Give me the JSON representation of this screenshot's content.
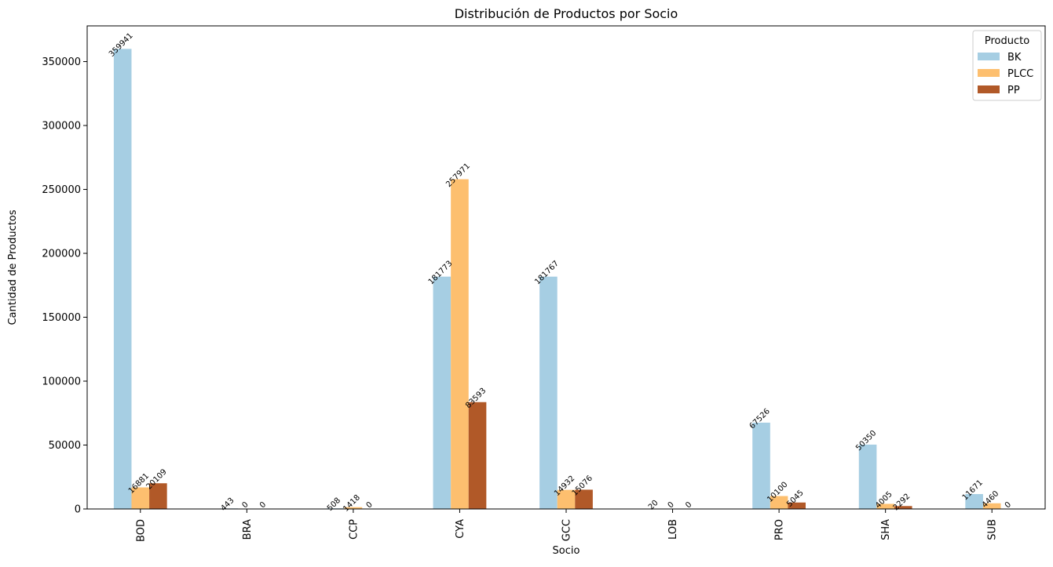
{
  "chart_data": {
    "type": "bar",
    "title": "Distribución de Productos por Socio",
    "xlabel": "Socio",
    "ylabel": "Cantidad de Productos",
    "categories": [
      "BOD",
      "BRA",
      "CCP",
      "CYA",
      "GCC",
      "LOB",
      "PRO",
      "SHA",
      "SUB"
    ],
    "series": [
      {
        "name": "BK",
        "color": "#a6cee3",
        "values": [
          359941,
          443,
          508,
          181773,
          181767,
          20,
          67526,
          50350,
          11671
        ]
      },
      {
        "name": "PLCC",
        "color": "#fdbf6f",
        "values": [
          16881,
          0,
          1418,
          257971,
          14932,
          0,
          10100,
          4005,
          4460
        ]
      },
      {
        "name": "PP",
        "color": "#b15928",
        "values": [
          20109,
          0,
          0,
          83593,
          15076,
          0,
          5045,
          2292,
          0
        ]
      }
    ],
    "ylim": [
      0,
      377938
    ],
    "yticks": [
      0,
      50000,
      100000,
      150000,
      200000,
      250000,
      300000,
      350000
    ],
    "legend": {
      "title": "Producto",
      "position": "top-right"
    },
    "grid": false
  }
}
